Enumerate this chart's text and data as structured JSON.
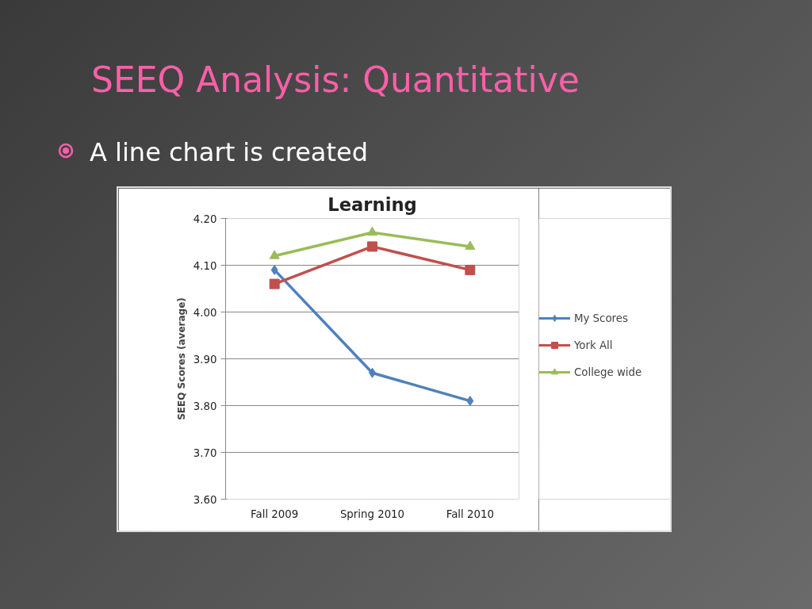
{
  "chart_data": {
    "type": "line",
    "title": "Learning",
    "subtitle": "SEEQ Analysis: Quantitative",
    "annotations": [
      "A line chart is created"
    ],
    "ylabel": "SEEQ Scores (average)",
    "categories": [
      "Fall 2009",
      "Spring 2010",
      "Fall 2010"
    ],
    "series": [
      {
        "name": "My Scores",
        "color": "#4f81bd",
        "marker": "diamond",
        "values": [
          4.09,
          3.87,
          3.81
        ]
      },
      {
        "name": "York All",
        "color": "#c0504d",
        "marker": "square",
        "values": [
          4.06,
          4.14,
          4.09
        ]
      },
      {
        "name": "College wide",
        "color": "#9bbb59",
        "marker": "triangle",
        "values": [
          4.12,
          4.17,
          4.14
        ]
      }
    ],
    "ylim": [
      3.6,
      4.2
    ],
    "yticks": [
      {
        "value": 3.6,
        "label": "3.60"
      },
      {
        "value": 3.7,
        "label": "3.70"
      },
      {
        "value": 3.8,
        "label": "3.80"
      },
      {
        "value": 3.9,
        "label": "3.90"
      },
      {
        "value": 4.0,
        "label": "4.00"
      },
      {
        "value": 4.1,
        "label": "4.10"
      },
      {
        "value": 4.2,
        "label": "4.20"
      }
    ],
    "grid": "y",
    "legend": "right",
    "line_style": "solid"
  }
}
